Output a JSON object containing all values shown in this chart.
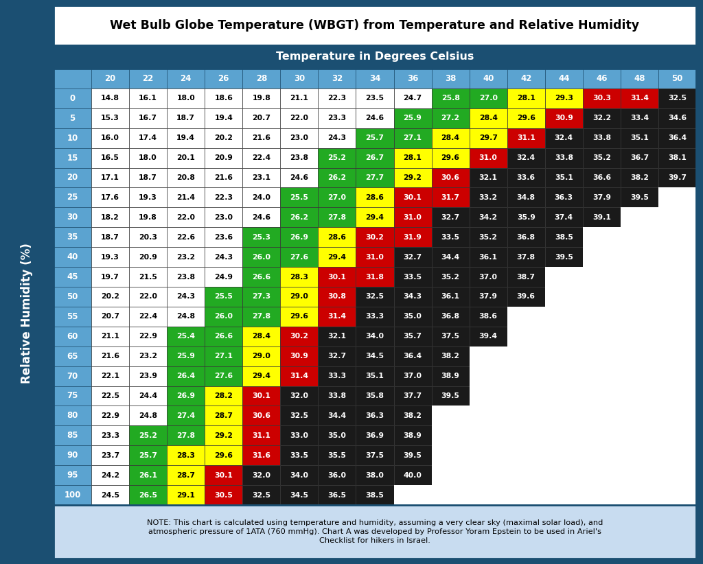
{
  "title": "Wet Bulb Globe Temperature (WBGT) from Temperature and Relative Humidity",
  "col_header_label": "Temperature in Degrees Celsius",
  "row_header_label": "Relative Humidity (%)",
  "col_headers": [
    20,
    22,
    24,
    26,
    28,
    30,
    32,
    34,
    36,
    38,
    40,
    42,
    44,
    46,
    48,
    50
  ],
  "row_headers": [
    0,
    5,
    10,
    15,
    20,
    25,
    30,
    35,
    40,
    45,
    50,
    55,
    60,
    65,
    70,
    75,
    80,
    85,
    90,
    95,
    100
  ],
  "table_data": [
    [
      14.8,
      16.1,
      18.0,
      18.6,
      19.8,
      21.1,
      22.3,
      23.5,
      24.7,
      25.8,
      27.0,
      28.1,
      29.3,
      30.3,
      31.4,
      32.5
    ],
    [
      15.3,
      16.7,
      18.7,
      19.4,
      20.7,
      22.0,
      23.3,
      24.6,
      25.9,
      27.2,
      28.4,
      29.6,
      30.9,
      32.2,
      33.4,
      34.6
    ],
    [
      16.0,
      17.4,
      19.4,
      20.2,
      21.6,
      23.0,
      24.3,
      25.7,
      27.1,
      28.4,
      29.7,
      31.1,
      32.4,
      33.8,
      35.1,
      36.4
    ],
    [
      16.5,
      18.0,
      20.1,
      20.9,
      22.4,
      23.8,
      25.2,
      26.7,
      28.1,
      29.6,
      31.0,
      32.4,
      33.8,
      35.2,
      36.7,
      38.1
    ],
    [
      17.1,
      18.7,
      20.8,
      21.6,
      23.1,
      24.6,
      26.2,
      27.7,
      29.2,
      30.6,
      32.1,
      33.6,
      35.1,
      36.6,
      38.2,
      39.7
    ],
    [
      17.6,
      19.3,
      21.4,
      22.3,
      24.0,
      25.5,
      27.0,
      28.6,
      30.1,
      31.7,
      33.2,
      34.8,
      36.3,
      37.9,
      39.5,
      null
    ],
    [
      18.2,
      19.8,
      22.0,
      23.0,
      24.6,
      26.2,
      27.8,
      29.4,
      31.0,
      32.7,
      34.2,
      35.9,
      37.4,
      39.1,
      null,
      null
    ],
    [
      18.7,
      20.3,
      22.6,
      23.6,
      25.3,
      26.9,
      28.6,
      30.2,
      31.9,
      33.5,
      35.2,
      36.8,
      38.5,
      null,
      null,
      null
    ],
    [
      19.3,
      20.9,
      23.2,
      24.3,
      26.0,
      27.6,
      29.4,
      31.0,
      32.7,
      34.4,
      36.1,
      37.8,
      39.5,
      null,
      null,
      null
    ],
    [
      19.7,
      21.5,
      23.8,
      24.9,
      26.6,
      28.3,
      30.1,
      31.8,
      33.5,
      35.2,
      37.0,
      38.7,
      null,
      null,
      null,
      null
    ],
    [
      20.2,
      22.0,
      24.3,
      25.5,
      27.3,
      29.0,
      30.8,
      32.5,
      34.3,
      36.1,
      37.9,
      39.6,
      null,
      null,
      null,
      null
    ],
    [
      20.7,
      22.4,
      24.8,
      26.0,
      27.8,
      29.6,
      31.4,
      33.3,
      35.0,
      36.8,
      38.6,
      null,
      null,
      null,
      null,
      null
    ],
    [
      21.1,
      22.9,
      25.4,
      26.6,
      28.4,
      30.2,
      32.1,
      34.0,
      35.7,
      37.5,
      39.4,
      null,
      null,
      null,
      null,
      null
    ],
    [
      21.6,
      23.2,
      25.9,
      27.1,
      29.0,
      30.9,
      32.7,
      34.5,
      36.4,
      38.2,
      null,
      null,
      null,
      null,
      null,
      null
    ],
    [
      22.1,
      23.9,
      26.4,
      27.6,
      29.4,
      31.4,
      33.3,
      35.1,
      37.0,
      38.9,
      null,
      null,
      null,
      null,
      null,
      null
    ],
    [
      22.5,
      24.4,
      26.9,
      28.2,
      30.1,
      32.0,
      33.8,
      35.8,
      37.7,
      39.5,
      null,
      null,
      null,
      null,
      null,
      null
    ],
    [
      22.9,
      24.8,
      27.4,
      28.7,
      30.6,
      32.5,
      34.4,
      36.3,
      38.2,
      null,
      null,
      null,
      null,
      null,
      null,
      null
    ],
    [
      23.3,
      25.2,
      27.8,
      29.2,
      31.1,
      33.0,
      35.0,
      36.9,
      38.9,
      null,
      null,
      null,
      null,
      null,
      null,
      null
    ],
    [
      23.7,
      25.7,
      28.3,
      29.6,
      31.6,
      33.5,
      35.5,
      37.5,
      39.5,
      null,
      null,
      null,
      null,
      null,
      null,
      null
    ],
    [
      24.2,
      26.1,
      28.7,
      30.1,
      32.0,
      34.0,
      36.0,
      38.0,
      40.0,
      null,
      null,
      null,
      null,
      null,
      null,
      null
    ],
    [
      24.5,
      26.5,
      29.1,
      30.5,
      32.5,
      34.5,
      36.5,
      38.5,
      null,
      null,
      null,
      null,
      null,
      null,
      null,
      null
    ]
  ],
  "note_text": "NOTE: This chart is calculated using temperature and humidity, assuming a very clear sky (maximal solar load), and\natmospheric pressure of 1ATA (760 mmHg). Chart A was developed by Professor Yoram Epstein to be used in Ariel's\nChecklist for hikers in Israel.",
  "colors": {
    "white": "#FFFFFF",
    "green": "#22AA22",
    "yellow": "#FFFF00",
    "red": "#CC0000",
    "dark": "#1A1A1A",
    "header_dark_blue": "#1B4F72",
    "header_light_blue": "#5BA3D0",
    "sidebar_blue": "#1B4F72",
    "border_blue": "#1B4F72",
    "title_bg": "#FFFFFF",
    "note_bg": "#C8DCF0",
    "empty_cell": "#FFFFFF",
    "outer_bg": "#1B4F72"
  },
  "color_thresholds": {
    "white_max": 25.0,
    "green_max": 27.9,
    "yellow_max": 29.9,
    "red_max": 31.9
  }
}
